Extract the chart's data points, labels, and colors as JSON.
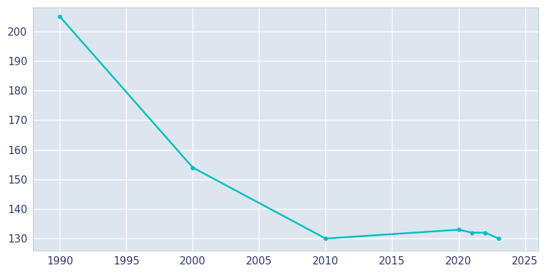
{
  "years": [
    1990,
    2000,
    2010,
    2020,
    2021,
    2022,
    2023
  ],
  "population": [
    205,
    154,
    130,
    133,
    132,
    132,
    130
  ],
  "line_color": "#00BFBF",
  "marker": "o",
  "marker_size": 3.5,
  "line_width": 1.8,
  "plot_bg_color": "#DDE6EF",
  "fig_bg_color": "#FFFFFF",
  "grid_color": "#FFFFFF",
  "xlim": [
    1988,
    2026
  ],
  "ylim": [
    126,
    208
  ],
  "xticks": [
    1990,
    1995,
    2000,
    2005,
    2010,
    2015,
    2020,
    2025
  ],
  "yticks": [
    130,
    140,
    150,
    160,
    170,
    180,
    190,
    200
  ],
  "tick_label_color": "#2D3A6B",
  "tick_fontsize": 11,
  "spine_color": "#AABBCC"
}
